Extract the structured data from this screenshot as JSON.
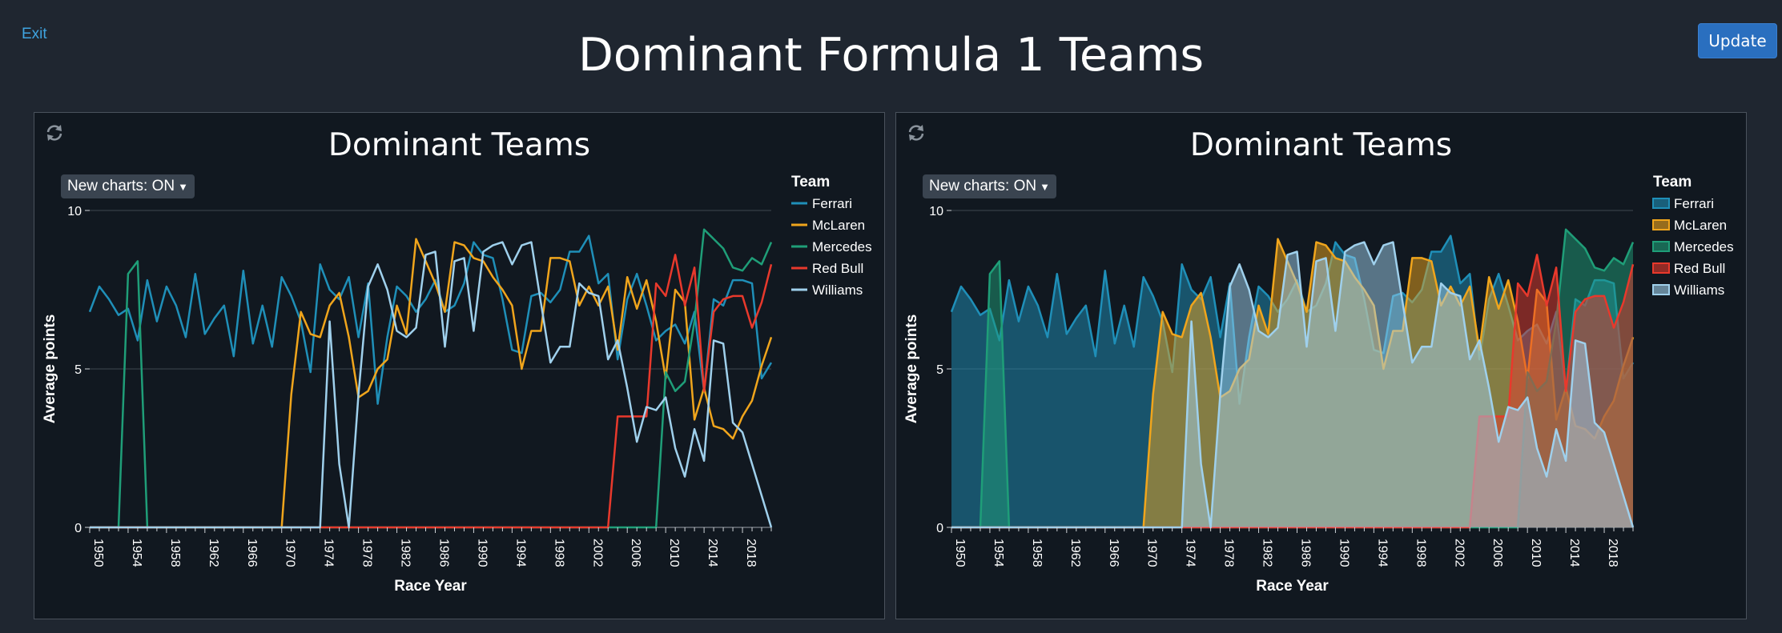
{
  "header": {
    "exit_label": "Exit",
    "update_label": "Update",
    "title": "Dominant Formula 1 Teams"
  },
  "panels": [
    {
      "title": "Dominant Teams",
      "toggle_label": "New charts: ON",
      "style": "line"
    },
    {
      "title": "Dominant Teams",
      "toggle_label": "New charts: ON",
      "style": "area"
    }
  ],
  "chart_data": [
    {
      "type": "line",
      "title": "Dominant Teams",
      "xlabel": "Race Year",
      "ylabel": "Average points",
      "ylim": [
        0,
        10
      ],
      "yticks": [
        "0",
        "5",
        "10"
      ],
      "xticks": [
        "1950",
        "1954",
        "1958",
        "1962",
        "1966",
        "1970",
        "1974",
        "1978",
        "1982",
        "1986",
        "1990",
        "1994",
        "1998",
        "2002",
        "2006",
        "2010",
        "2014",
        "2018"
      ],
      "legend_title": "Team",
      "legend_position": "top-right",
      "grid": true,
      "x": [
        1950,
        1951,
        1952,
        1953,
        1954,
        1955,
        1956,
        1957,
        1958,
        1959,
        1960,
        1961,
        1962,
        1963,
        1964,
        1965,
        1966,
        1967,
        1968,
        1969,
        1970,
        1971,
        1972,
        1973,
        1974,
        1975,
        1976,
        1977,
        1978,
        1979,
        1980,
        1981,
        1982,
        1983,
        1984,
        1985,
        1986,
        1987,
        1988,
        1989,
        1990,
        1991,
        1992,
        1993,
        1994,
        1995,
        1996,
        1997,
        1998,
        1999,
        2000,
        2001,
        2002,
        2003,
        2004,
        2005,
        2006,
        2007,
        2008,
        2009,
        2010,
        2011,
        2012,
        2013,
        2014,
        2015,
        2016,
        2017,
        2018,
        2019,
        2020,
        2021
      ],
      "series": [
        {
          "name": "Ferrari",
          "color": "#1f8fb8",
          "values": [
            6.8,
            7.6,
            7.2,
            6.7,
            6.9,
            5.9,
            7.8,
            6.5,
            7.6,
            7.0,
            6.0,
            8.0,
            6.1,
            6.6,
            7.0,
            5.4,
            8.1,
            5.8,
            7.0,
            5.7,
            7.9,
            7.3,
            6.5,
            4.9,
            8.3,
            7.5,
            7.2,
            7.9,
            6.0,
            7.7,
            3.9,
            6.0,
            7.6,
            7.3,
            6.8,
            7.2,
            7.8,
            6.8,
            7.0,
            7.7,
            9.0,
            8.6,
            8.5,
            7.2,
            5.6,
            5.5,
            7.3,
            7.4,
            7.1,
            7.5,
            8.7,
            8.7,
            9.2,
            7.7,
            8.0,
            5.3,
            7.2,
            8.0,
            7.0,
            5.9,
            6.2,
            6.4,
            5.8,
            6.8,
            4.3,
            7.2,
            7.0,
            7.8,
            7.8,
            7.7,
            4.7,
            5.2
          ]
        },
        {
          "name": "McLaren",
          "color": "#f0a51c",
          "values": [
            0,
            0,
            0,
            0,
            0,
            0,
            0,
            0,
            0,
            0,
            0,
            0,
            0,
            0,
            0,
            0,
            0,
            0,
            0,
            0,
            0,
            4.2,
            6.8,
            6.1,
            6.0,
            7.0,
            7.4,
            6.0,
            4.1,
            4.3,
            5.0,
            5.3,
            7.0,
            6.1,
            9.1,
            8.4,
            7.7,
            6.8,
            9.0,
            8.9,
            8.5,
            8.4,
            7.9,
            7.5,
            7.0,
            5.0,
            6.2,
            6.2,
            8.5,
            8.5,
            8.4,
            7.0,
            7.6,
            7.0,
            7.6,
            5.6,
            7.9,
            6.9,
            7.8,
            6.5,
            4.7,
            7.5,
            7.1,
            3.4,
            4.4,
            3.2,
            3.1,
            2.8,
            3.5,
            4.0,
            5.1,
            6.0
          ]
        },
        {
          "name": "Mercedes",
          "color": "#1f9e78",
          "values": [
            0,
            0,
            0,
            0,
            8.0,
            8.4,
            0,
            0,
            0,
            0,
            0,
            0,
            0,
            0,
            0,
            0,
            0,
            0,
            0,
            0,
            0,
            0,
            0,
            0,
            0,
            0,
            0,
            0,
            0,
            0,
            0,
            0,
            0,
            0,
            0,
            0,
            0,
            0,
            0,
            0,
            0,
            0,
            0,
            0,
            0,
            0,
            0,
            0,
            0,
            0,
            0,
            0,
            0,
            0,
            0,
            0,
            0,
            0,
            0,
            0,
            4.9,
            4.3,
            4.6,
            6.5,
            9.4,
            9.1,
            8.8,
            8.2,
            8.1,
            8.5,
            8.3,
            9.0
          ]
        },
        {
          "name": "Red Bull",
          "color": "#e8392c",
          "values": [
            0,
            0,
            0,
            0,
            0,
            0,
            0,
            0,
            0,
            0,
            0,
            0,
            0,
            0,
            0,
            0,
            0,
            0,
            0,
            0,
            0,
            0,
            0,
            0,
            0,
            0,
            0,
            0,
            0,
            0,
            0,
            0,
            0,
            0,
            0,
            0,
            0,
            0,
            0,
            0,
            0,
            0,
            0,
            0,
            0,
            0,
            0,
            0,
            0,
            0,
            0,
            0,
            0,
            0,
            0,
            3.5,
            3.5,
            3.5,
            3.5,
            7.7,
            7.3,
            8.6,
            7.0,
            8.2,
            4.3,
            6.8,
            7.2,
            7.3,
            7.3,
            6.3,
            7.1,
            8.3
          ]
        },
        {
          "name": "Williams",
          "color": "#9fd0ec",
          "values": [
            0,
            0,
            0,
            0,
            0,
            0,
            0,
            0,
            0,
            0,
            0,
            0,
            0,
            0,
            0,
            0,
            0,
            0,
            0,
            0,
            0,
            0,
            0,
            0,
            0,
            6.5,
            2.0,
            0,
            4.2,
            7.6,
            8.3,
            7.5,
            6.2,
            6.0,
            6.3,
            8.6,
            8.7,
            5.7,
            8.4,
            8.5,
            6.2,
            8.7,
            8.9,
            9.0,
            8.3,
            8.9,
            9.0,
            7.1,
            5.2,
            5.7,
            5.7,
            7.7,
            7.4,
            7.3,
            5.3,
            5.9,
            4.4,
            2.7,
            3.8,
            3.7,
            4.1,
            2.5,
            1.6,
            3.1,
            2.1,
            5.9,
            5.8,
            3.3,
            3.0,
            2.0,
            1.0,
            0
          ]
        }
      ]
    },
    {
      "type": "area",
      "title": "Dominant Teams",
      "xlabel": "Race Year",
      "ylabel": "Average points",
      "ylim": [
        0,
        10
      ],
      "yticks": [
        "0",
        "5",
        "10"
      ],
      "xticks": [
        "1950",
        "1954",
        "1958",
        "1962",
        "1966",
        "1970",
        "1974",
        "1978",
        "1982",
        "1986",
        "1990",
        "1994",
        "1998",
        "2002",
        "2006",
        "2010",
        "2014",
        "2018"
      ],
      "legend_title": "Team",
      "legend_position": "top-right",
      "grid": true,
      "same_data_as_chart": 0
    }
  ]
}
